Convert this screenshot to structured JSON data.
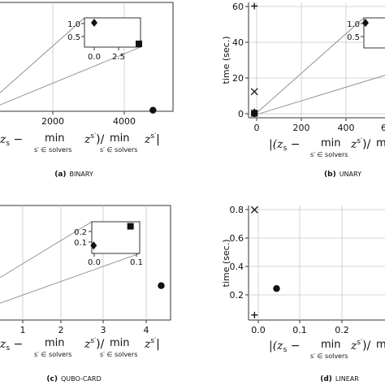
{
  "chart_data": [
    {
      "id": "binary",
      "type": "scatter",
      "caption_letter": "(a)",
      "caption_text": "BINARY",
      "xlabel_left": "z",
      "xlabel_sub": "s",
      "xlabel_mid": " − ",
      "xlabel_min": "min",
      "xlabel_minsub": "s′ ∈ solvers",
      "xlabel_z": "z",
      "xlabel_zsub": "s′",
      "xlabel_tail": ")/",
      "x_ticks": [
        "2000",
        "4000"
      ],
      "xlim": [
        -500,
        5600
      ],
      "ylim": [
        0,
        1.0
      ],
      "points": [
        {
          "marker": "circle",
          "x": 4900,
          "y": 0.01
        }
      ],
      "inset": {
        "x_ticks": [
          "0.0",
          "2.5"
        ],
        "y_ticks": [
          "1.0",
          "0.5"
        ],
        "xlim": [
          0,
          4.2
        ],
        "ylim": [
          0.25,
          1.15
        ],
        "points": [
          {
            "marker": "diamond",
            "x": 0.0,
            "y": 1.0
          },
          {
            "marker": "square",
            "x": 3.9,
            "y": 0.35
          }
        ]
      }
    },
    {
      "id": "unary",
      "type": "scatter",
      "caption_letter": "(b)",
      "caption_text": "UNARY",
      "ylabel": "time (sec.)",
      "xlabel_left": "|(z",
      "xlabel_sub": "s",
      "xlabel_mid": " − ",
      "xlabel_min": "min",
      "xlabel_minsub": "s′ ∈ solvers",
      "xlabel_z": "z",
      "xlabel_zsub": "s′",
      "xlabel_tail": ")/",
      "xlabel_cut": "m",
      "x_ticks": [
        "0",
        "200",
        "400",
        "6"
      ],
      "y_ticks": [
        "60",
        "40",
        "20",
        "0"
      ],
      "xlim": [
        -30,
        680
      ],
      "ylim": [
        -2,
        62
      ],
      "points": [
        {
          "marker": "plus",
          "x": 0,
          "y": 60
        },
        {
          "marker": "x",
          "x": 0,
          "y": 12.5
        },
        {
          "marker": "x",
          "x": 0,
          "y": 0.5
        },
        {
          "marker": "square",
          "x": 0,
          "y": 0.5
        },
        {
          "marker": "diamond",
          "x": 0,
          "y": 1.0
        },
        {
          "marker": "circle",
          "x": 0,
          "y": 0.3
        }
      ],
      "inset": {
        "y_ticks": [
          "1.0",
          "0.5"
        ],
        "ylim": [
          0.25,
          1.15
        ],
        "points": [
          {
            "marker": "diamond",
            "x": 0.0,
            "y": 1.0
          }
        ]
      }
    },
    {
      "id": "qubo-card",
      "type": "scatter",
      "caption_letter": "(c)",
      "caption_text": "QUBO-CARD",
      "xlabel_left": "z",
      "xlabel_sub": "s",
      "xlabel_mid": " − ",
      "xlabel_min": "min",
      "xlabel_minsub": "s′ ∈ solvers",
      "xlabel_z": "z",
      "xlabel_zsub": "s′",
      "xlabel_tail": ")/",
      "xlabel_min2": "min",
      "xlabel_zs2": "z",
      "xlabel_zs2sub": "s′",
      "x_ticks": [
        "1",
        "2",
        "3",
        "4"
      ],
      "xlim": [
        0,
        4.6
      ],
      "ylim": [
        0,
        1.0
      ],
      "points": [
        {
          "marker": "circle",
          "x": 4.35,
          "y": 0.3
        }
      ],
      "inset": {
        "x_ticks": [
          "0.0",
          "0.1"
        ],
        "y_ticks": [
          "0.2",
          "0.1"
        ],
        "xlim": [
          -0.005,
          0.125
        ],
        "ylim": [
          -0.01,
          0.27
        ],
        "points": [
          {
            "marker": "diamond",
            "x": 0.0,
            "y": 0.06
          },
          {
            "marker": "square",
            "x": 0.1,
            "y": 0.23
          }
        ]
      }
    },
    {
      "id": "linear",
      "type": "scatter",
      "caption_letter": "(d)",
      "caption_text": "LINEAR",
      "ylabel": "time (sec.)",
      "xlabel_left": "|(z",
      "xlabel_sub": "s",
      "xlabel_mid": " − ",
      "xlabel_min": "min",
      "xlabel_minsub": "s′ ∈ solvers",
      "xlabel_z": "z",
      "xlabel_zsub": "s′",
      "xlabel_tail": ")/",
      "xlabel_cut": "m",
      "x_ticks": [
        "0.0",
        "0.1",
        "0.2"
      ],
      "y_ticks": [
        "0.8",
        "0.6",
        "0.4",
        "0.2"
      ],
      "xlim": [
        -0.015,
        0.33
      ],
      "ylim": [
        0.03,
        0.83
      ],
      "points": [
        {
          "marker": "x",
          "x": 0.0,
          "y": 0.8
        },
        {
          "marker": "circle",
          "x": 0.055,
          "y": 0.25
        },
        {
          "marker": "plus",
          "x": 0.0,
          "y": 0.065
        }
      ]
    }
  ]
}
